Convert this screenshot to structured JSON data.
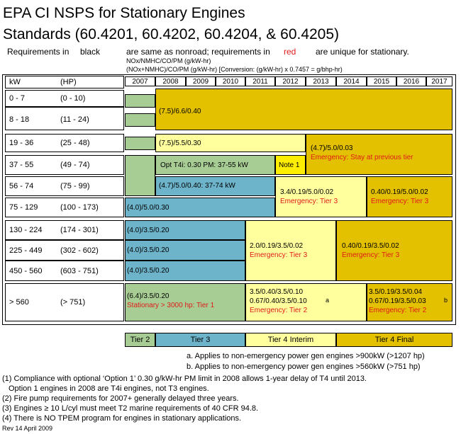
{
  "title": {
    "line1": "EPA CI NSPS for Stationary Engines",
    "line2": "Standards (60.4201, 60.4202, 60.4204, & 60.4205)"
  },
  "subtitle": {
    "part1": "Requirements in",
    "black_word": "black",
    "part2": "are same as nonroad; requirements in",
    "red_word": "red",
    "part3": "are unique for stationary."
  },
  "units": {
    "line1": "NOx/NMHC/CO/PM  (g/kW-hr)",
    "line2": "(NOx+NMHC)/CO/PM  (g/kW-hr) [Conversion: (g/kW-hr) x 0.7457 = g/bhp-hr)"
  },
  "header": {
    "kw": "kW",
    "hp": "(HP)"
  },
  "years": [
    "2007",
    "2008",
    "2009",
    "2010",
    "2011",
    "2012",
    "2013",
    "2014",
    "2015",
    "2016",
    "2017"
  ],
  "rows": [
    {
      "kw": "0 - 7",
      "hp": "(0 - 10)"
    },
    {
      "kw": "8 - 18",
      "hp": "(11 - 24)"
    },
    {
      "kw": "19 - 36",
      "hp": "(25 - 48)"
    },
    {
      "kw": "37 - 55",
      "hp": "(49 - 74)"
    },
    {
      "kw": "56 - 74",
      "hp": "(75 - 99)"
    },
    {
      "kw": "75 - 129",
      "hp": "(100 - 173)"
    },
    {
      "kw": "130 - 224",
      "hp": "(174 - 301)"
    },
    {
      "kw": "225 - 449",
      "hp": "(302 - 602)"
    },
    {
      "kw": "450 - 560",
      "hp": "(603 - 751)"
    },
    {
      "kw": "> 560",
      "hp": "(> 751)"
    }
  ],
  "cells": {
    "c_small": "(7.5)/6.6/0.40",
    "c_19_36": "(7.5)/5.5/0.30",
    "c_19_36_t4_a": "(4.7)/5.0/0.03",
    "c_19_36_t4_b": "Emergency: Stay at previous tier",
    "c_37_55_opt": "Opt T4i: 0.30 PM: 37-55 kW",
    "c_note1": "Note 1",
    "c_56_74": "(4.7)/5.0/0.40: 37-74 kW",
    "c_56_129_t4i_a": "3.4/0.19/5.0/0.02",
    "c_56_129_t4i_b": "Emergency: Tier 3",
    "c_56_129_t4f_a": "0.40/0.19/5.0/0.02",
    "c_56_129_t4f_b": "Emergency: Tier 3",
    "c_75_129": "(4.0)/5.0/0.30",
    "c_130_224": "(4.0)/3.5/0.20",
    "c_225_449": "(4.0)/3.5/0.20",
    "c_450_560": "(4.0)/3.5/0.20",
    "c_mid_t4i_a": "2.0/0.19/3.5/0.02",
    "c_mid_t4i_b": "Emergency: Tier 3",
    "c_mid_t4f_a": "0.40/0.19/3.5/0.02",
    "c_mid_t4f_b": "Emergency: Tier 3",
    "c_560_t2_a": "(6.4)/3.5/0.20",
    "c_560_t2_b": "Stationary > 3000 hp: Tier 1",
    "c_560_t4i_a": "3.5/0.40/3.5/0.10",
    "c_560_t4i_b": "0.67/0.40/3.5/0.10",
    "c_560_t4i_c": "Emergency: Tier 2",
    "c_560_t4i_mark": "a",
    "c_560_t4f_a": "3.5/0.19/3.5/0.04",
    "c_560_t4f_b": "0.67/0.19/3.5/0.03",
    "c_560_t4f_c": "Emergency: Tier 2",
    "c_560_t4f_mark": "b"
  },
  "legend": {
    "tier2": "Tier 2",
    "tier3": "Tier 3",
    "tier4i": "Tier 4 Interim",
    "tier4f": "Tier 4 Final"
  },
  "notes": {
    "a": "a. Applies to non-emergency power gen engines >900kW (>1207 hp)",
    "b": "b. Applies to non-emergency power gen engines >560kW (>751 hp)"
  },
  "footnotes": [
    "(1) Compliance with optional ‘Option 1’ 0.30 g/kW-hr PM limit in 2008 allows 1-year delay of T4 until 2013.",
    "     Option 1 engines in 2008 are T4i engines, not T3 engines.",
    "(2) Fire pump requirements for 2007+ generally delayed three years.",
    "(3) Engines ≥ 10 L/cyl must meet T2 marine requirements of 40 CFR 94.8.",
    "(4) There is NO TPEM program for engines in stationary applications."
  ],
  "revision": "Rev 14 April 2009",
  "colors": {
    "tier2": "#a8cd94",
    "tier3": "#6db3c9",
    "tier4_interim": "#ffff9e",
    "tier4_final": "#e3c000",
    "note1": "#ffee00",
    "stationary_text": "#e01a1a"
  }
}
